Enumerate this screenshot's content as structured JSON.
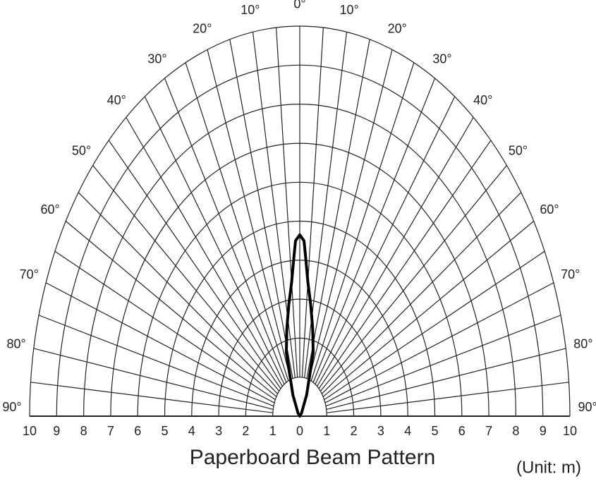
{
  "chart_data": {
    "type": "polar",
    "title": "Paperboard Beam Pattern",
    "annotation": "(Unit: m)",
    "rlim": [
      0,
      10
    ],
    "rticks": [
      {
        "value": -10,
        "label": "10"
      },
      {
        "value": -9,
        "label": "9"
      },
      {
        "value": -8,
        "label": "8"
      },
      {
        "value": -7,
        "label": "7"
      },
      {
        "value": -6,
        "label": "6"
      },
      {
        "value": -5,
        "label": "5"
      },
      {
        "value": -4,
        "label": "4"
      },
      {
        "value": -3,
        "label": "3"
      },
      {
        "value": -2,
        "label": "2"
      },
      {
        "value": -1,
        "label": "1"
      },
      0,
      1,
      2,
      3,
      4,
      5,
      6,
      7,
      8,
      9,
      10
    ],
    "thetaticks": [
      {
        "value": -90,
        "label": "90°"
      },
      {
        "value": -80,
        "label": "80°"
      },
      {
        "value": -70,
        "label": "70°"
      },
      {
        "value": -60,
        "label": "60°"
      },
      {
        "value": -50,
        "label": "50°"
      },
      {
        "value": -40,
        "label": "40°"
      },
      {
        "value": -30,
        "label": "30°"
      },
      {
        "value": -20,
        "label": "20°"
      },
      {
        "value": -10,
        "label": "10°"
      },
      {
        "value": 0,
        "label": "0°"
      },
      {
        "value": 10,
        "label": "10°"
      },
      {
        "value": 20,
        "label": "20°"
      },
      {
        "value": 30,
        "label": "30°"
      },
      {
        "value": 40,
        "label": "40°"
      },
      {
        "value": 50,
        "label": "50°"
      },
      {
        "value": 60,
        "label": "60°"
      },
      {
        "value": 70,
        "label": "70°"
      },
      {
        "value": 80,
        "label": "80°"
      },
      {
        "value": 90,
        "label": "90°"
      }
    ],
    "thetaminor": [
      -85,
      -75,
      -65,
      -55,
      -45,
      -35,
      -25,
      -15,
      -5,
      5,
      15,
      25,
      35,
      45,
      55,
      65,
      75,
      85
    ],
    "color": "#000000",
    "theta": [
      -90,
      -40,
      -25,
      -17,
      -12,
      -8,
      -5,
      -3,
      -2,
      0,
      2,
      3,
      5,
      8,
      12,
      17,
      25,
      40,
      90
    ],
    "r": [
      0,
      0.1,
      0.6,
      1.7,
      2.3,
      2.9,
      3.45,
      4.1,
      4.5,
      4.65,
      4.5,
      4.1,
      3.45,
      2.9,
      2.3,
      1.7,
      0.6,
      0.1,
      0
    ]
  }
}
